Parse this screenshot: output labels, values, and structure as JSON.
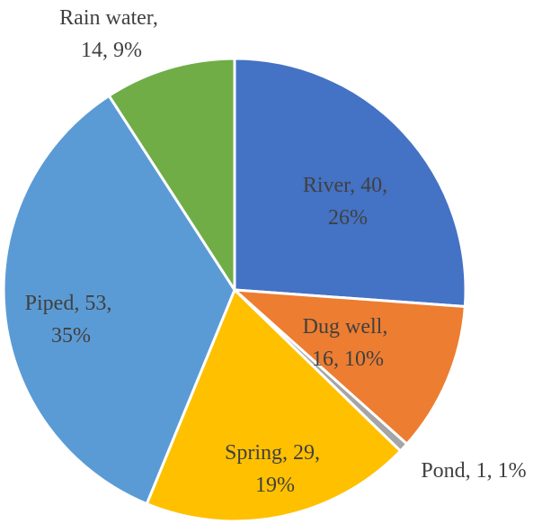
{
  "chart_data": {
    "type": "pie",
    "title": "",
    "slices": [
      {
        "label": "River",
        "value": 40,
        "percent": "26%",
        "color": "#4472C4",
        "text_color": "#404040"
      },
      {
        "label": "Dug well",
        "value": 16,
        "percent": "10%",
        "color": "#ED7D31",
        "text_color": "#404040"
      },
      {
        "label": "Pond",
        "value": 1,
        "percent": "1%",
        "color": "#A5A5A5",
        "text_color": "#404040"
      },
      {
        "label": "Spring",
        "value": 29,
        "percent": "19%",
        "color": "#FFC000",
        "text_color": "#404040"
      },
      {
        "label": "Piped",
        "value": 53,
        "percent": "35%",
        "color": "#5B9BD5",
        "text_color": "#404040"
      },
      {
        "label": "Rain water",
        "value": 14,
        "percent": "9%",
        "color": "#70AD47",
        "text_color": "#404040"
      }
    ],
    "data_labels": [
      {
        "lines": [
          "River, 40,",
          "26%"
        ]
      },
      {
        "lines": [
          "Dug well,",
          "16, 10%"
        ]
      },
      {
        "lines": [
          "Pond, 1, 1%"
        ]
      },
      {
        "lines": [
          "Spring, 29,",
          "19%"
        ]
      },
      {
        "lines": [
          "Piped, 53,",
          "35%"
        ]
      },
      {
        "lines": [
          "Rain water,",
          "14, 9%"
        ]
      }
    ]
  }
}
